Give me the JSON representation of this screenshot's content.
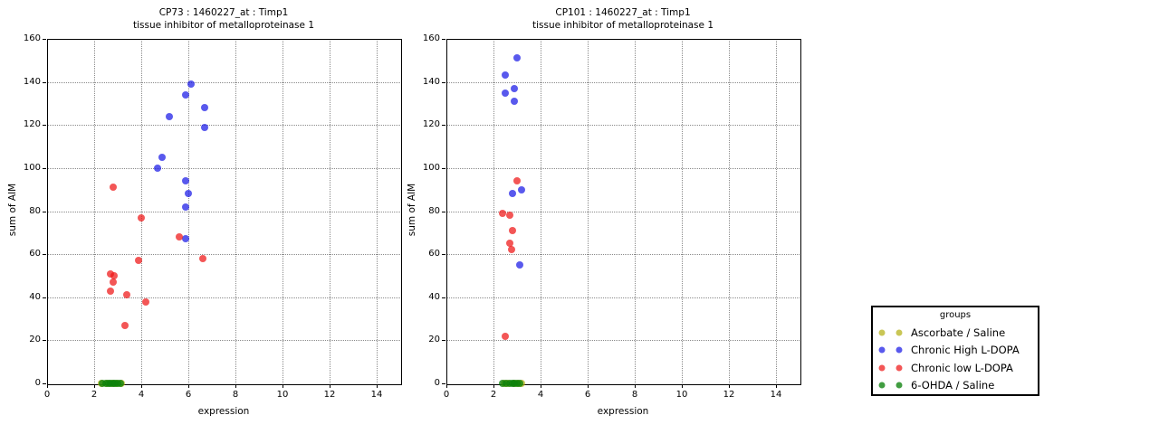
{
  "figure": {
    "background": "#ffffff"
  },
  "legend": {
    "title": "groups",
    "entries": [
      {
        "label": "Ascorbate / Saline",
        "color": "rgba(180,176,20,0.72)"
      },
      {
        "label": "Chronic High L-DOPA",
        "color": "rgba(25,25,230,0.72)"
      },
      {
        "label": "Chronic low L-DOPA",
        "color": "rgba(238,21,21,0.72)"
      },
      {
        "label": "6-OHDA / Saline",
        "color": "rgba(11,130,11,0.78)"
      }
    ]
  },
  "chart_data": [
    {
      "type": "scatter",
      "id": "cp73",
      "title": "CP73 : 1460227_at : Timp1",
      "subtitle": "tissue inhibitor of metalloproteinase 1",
      "xlabel": "expression",
      "ylabel": "sum of AIM",
      "xlim": [
        0,
        15
      ],
      "ylim": [
        0,
        160
      ],
      "xticks": [
        0,
        2,
        4,
        6,
        8,
        10,
        12,
        14
      ],
      "yticks": [
        0,
        20,
        40,
        60,
        80,
        100,
        120,
        140,
        160
      ],
      "grid": true,
      "series": [
        {
          "name": "Ascorbate / Saline",
          "points": [
            [
              2.3,
              0
            ],
            [
              2.55,
              0
            ],
            [
              2.75,
              0
            ],
            [
              2.95,
              0
            ],
            [
              3.15,
              0
            ]
          ]
        },
        {
          "name": "Chronic High L-DOPA",
          "points": [
            [
              6.1,
              139
            ],
            [
              5.9,
              134
            ],
            [
              6.7,
              128
            ],
            [
              5.2,
              124
            ],
            [
              6.7,
              119
            ],
            [
              4.9,
              105
            ],
            [
              4.7,
              100
            ],
            [
              5.9,
              94
            ],
            [
              6.0,
              88
            ],
            [
              5.9,
              82
            ],
            [
              5.9,
              67
            ]
          ]
        },
        {
          "name": "Chronic low L-DOPA",
          "points": [
            [
              2.8,
              91
            ],
            [
              4.0,
              77
            ],
            [
              5.6,
              68
            ],
            [
              6.6,
              58
            ],
            [
              3.9,
              57
            ],
            [
              2.7,
              51
            ],
            [
              2.85,
              50
            ],
            [
              2.8,
              47
            ],
            [
              2.7,
              43
            ],
            [
              3.4,
              41
            ],
            [
              4.2,
              38
            ],
            [
              3.3,
              27
            ]
          ]
        },
        {
          "name": "6-OHDA / Saline",
          "points": [
            [
              2.35,
              0
            ],
            [
              2.5,
              0
            ],
            [
              2.6,
              0
            ],
            [
              2.7,
              0
            ],
            [
              2.8,
              0
            ],
            [
              2.9,
              0
            ],
            [
              3.0,
              0
            ],
            [
              3.1,
              0
            ]
          ]
        }
      ]
    },
    {
      "type": "scatter",
      "id": "cp101",
      "title": "CP101 : 1460227_at : Timp1",
      "subtitle": "tissue inhibitor of metalloproteinase 1",
      "xlabel": "expression",
      "ylabel": "sum of AIM",
      "xlim": [
        0,
        15
      ],
      "ylim": [
        0,
        160
      ],
      "xticks": [
        0,
        2,
        4,
        6,
        8,
        10,
        12,
        14
      ],
      "yticks": [
        0,
        20,
        40,
        60,
        80,
        100,
        120,
        140,
        160
      ],
      "grid": true,
      "series": [
        {
          "name": "Ascorbate / Saline",
          "points": [
            [
              2.45,
              0
            ],
            [
              2.6,
              0
            ],
            [
              2.9,
              0
            ],
            [
              3.05,
              0
            ],
            [
              3.2,
              0
            ]
          ]
        },
        {
          "name": "Chronic High L-DOPA",
          "points": [
            [
              3.0,
              151
            ],
            [
              2.5,
              143
            ],
            [
              2.9,
              137
            ],
            [
              2.5,
              135
            ],
            [
              2.9,
              131
            ],
            [
              3.2,
              90
            ],
            [
              2.8,
              88
            ],
            [
              3.1,
              55
            ]
          ]
        },
        {
          "name": "Chronic low L-DOPA",
          "points": [
            [
              3.0,
              94
            ],
            [
              2.4,
              79
            ],
            [
              2.7,
              78
            ],
            [
              2.8,
              71
            ],
            [
              2.7,
              65
            ],
            [
              2.75,
              62
            ],
            [
              2.5,
              22
            ]
          ]
        },
        {
          "name": "6-OHDA / Saline",
          "points": [
            [
              2.4,
              0
            ],
            [
              2.55,
              0
            ],
            [
              2.7,
              0
            ],
            [
              2.8,
              0
            ],
            [
              2.9,
              0
            ],
            [
              3.0,
              0
            ],
            [
              3.1,
              0
            ]
          ]
        }
      ]
    }
  ]
}
